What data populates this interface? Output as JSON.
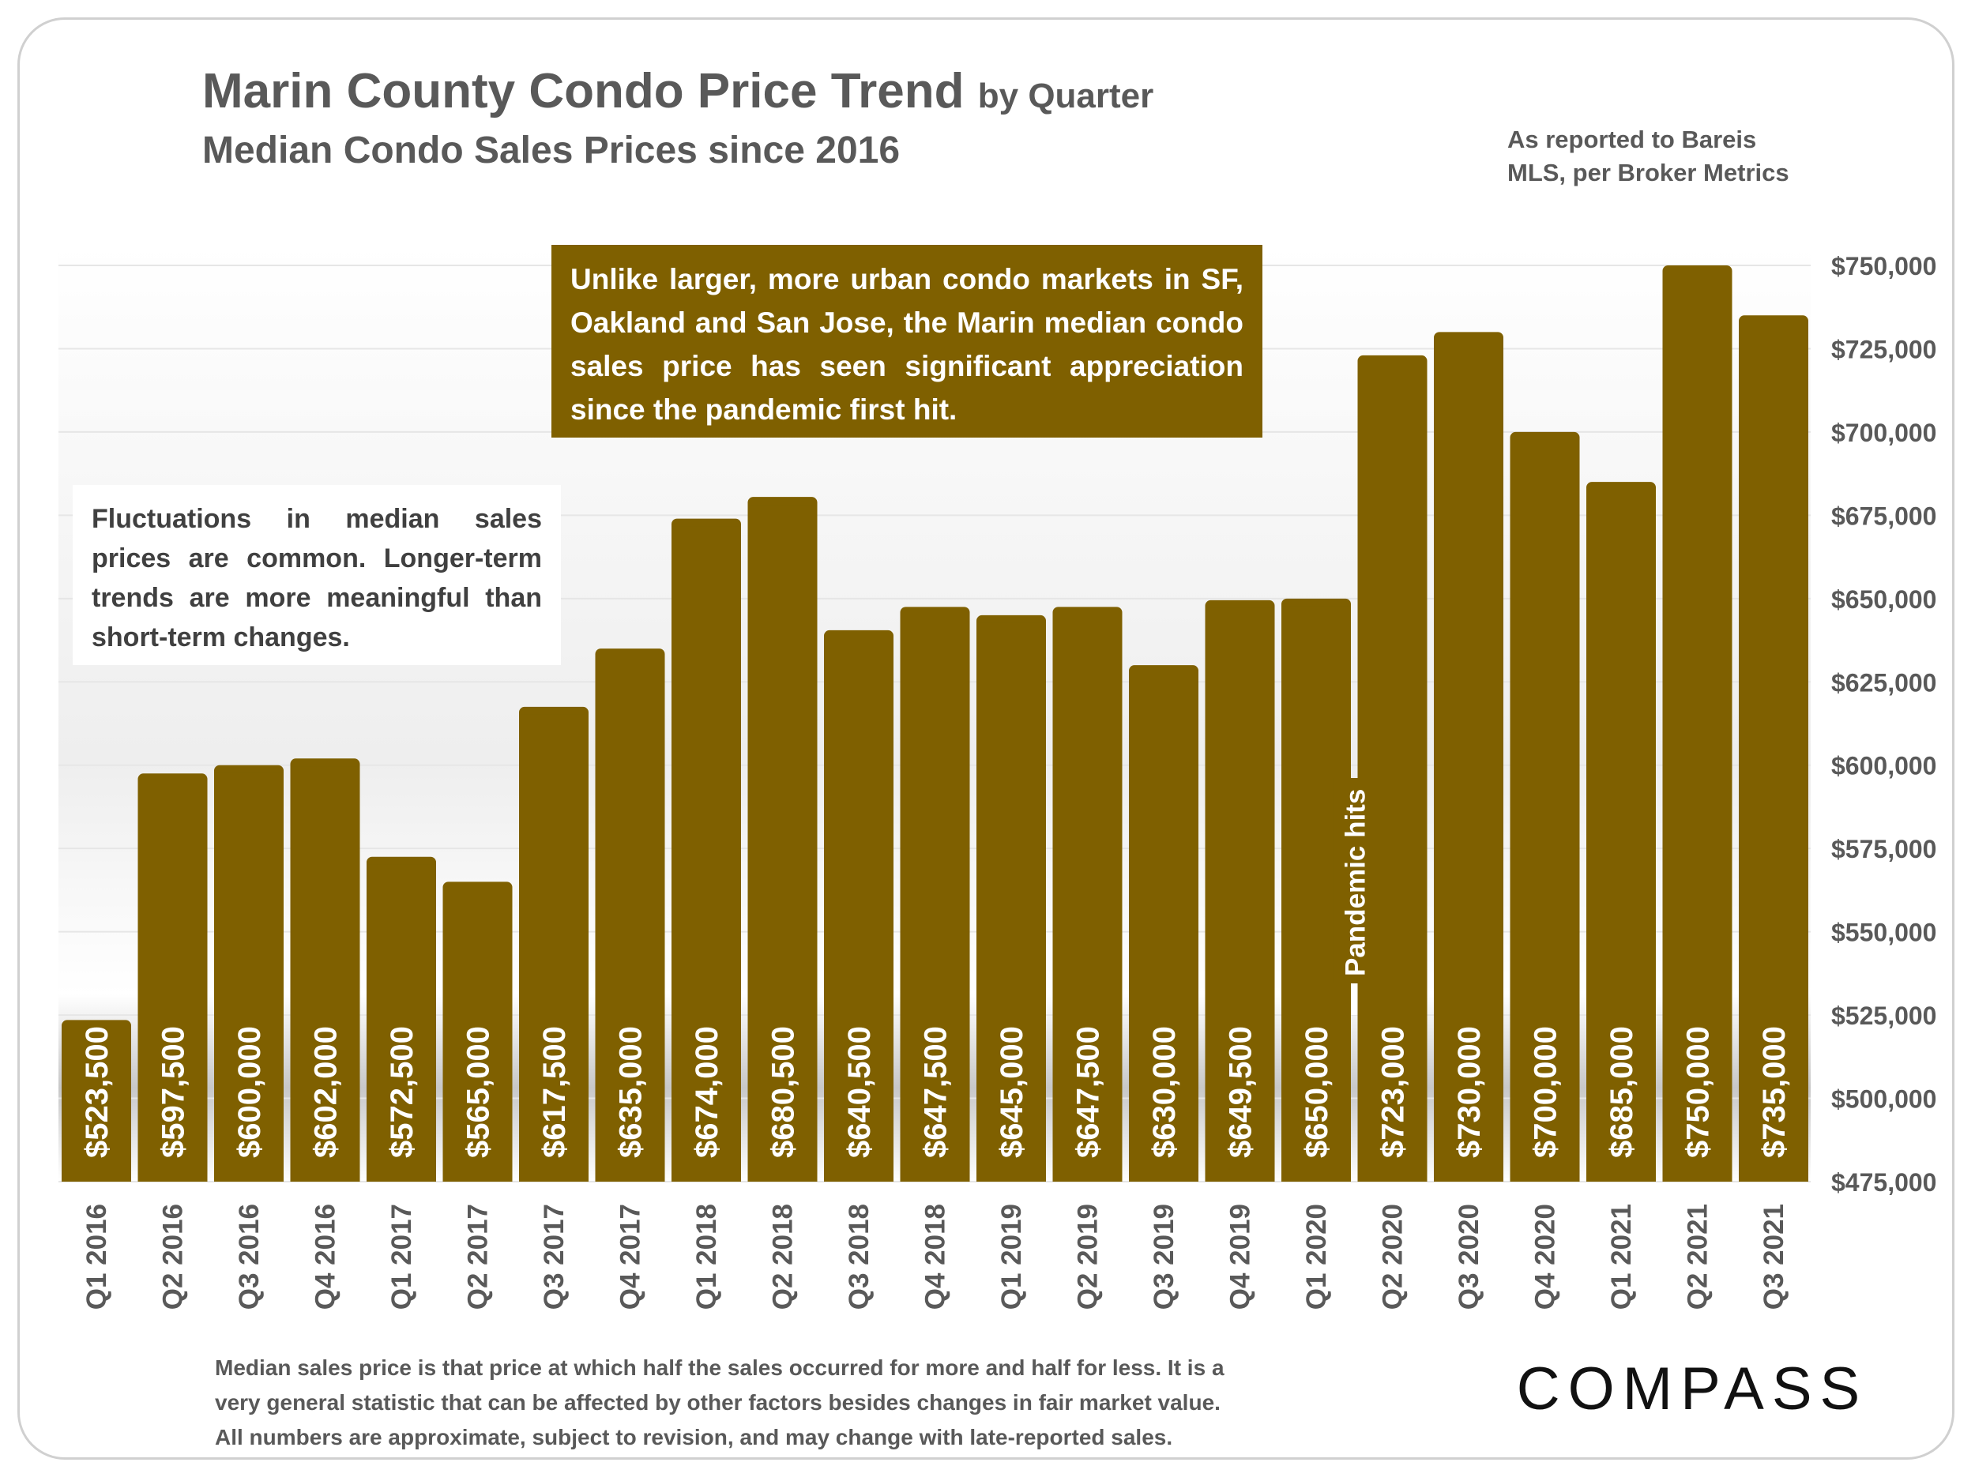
{
  "header": {
    "title": "Marin County Condo Price Trend",
    "title_suffix": "by Quarter",
    "subtitle": "Median Condo Sales Prices since 2016",
    "source_line1": "As reported to Bareis",
    "source_line2": "MLS, per Broker Metrics"
  },
  "callouts": {
    "pandemic_appreciation": "Unlike larger, more urban condo markets in SF, Oakland and San Jose, the Marin median condo sales price has seen significant appreciation since the pandemic first hit.",
    "fluctuations": "Fluctuations in median sales prices are common. Longer-term trends are more meaningful than short-term changes.",
    "pandemic_marker": "Pandemic hits"
  },
  "footnote": {
    "line1": "Median sales price is that price at which half the sales occurred for more and half for less. It is a",
    "line2": "very general statistic that can be affected by other factors besides changes in fair market value.",
    "line3": "All numbers are approximate, subject to revision, and may change with late-reported sales."
  },
  "brand": {
    "logo_text": "COMPASS"
  },
  "colors": {
    "bar": "#7f6000",
    "axis_text": "#595959",
    "grid": "#e6e6e6"
  },
  "chart_data": {
    "type": "bar",
    "title": "Marin County Condo Price Trend by Quarter",
    "subtitle": "Median Condo Sales Prices since 2016",
    "xlabel": "",
    "ylabel": "",
    "y_axis_position": "right",
    "grid": true,
    "ylim": [
      475000,
      750000
    ],
    "y_ticks": [
      475000,
      500000,
      525000,
      550000,
      575000,
      600000,
      625000,
      650000,
      675000,
      700000,
      725000,
      750000
    ],
    "y_tick_labels": [
      "$475,000",
      "$500,000",
      "$525,000",
      "$550,000",
      "$575,000",
      "$600,000",
      "$625,000",
      "$650,000",
      "$675,000",
      "$700,000",
      "$725,000",
      "$750,000"
    ],
    "categories": [
      "Q1 2016",
      "Q2 2016",
      "Q3 2016",
      "Q4 2016",
      "Q1 2017",
      "Q2 2017",
      "Q3 2017",
      "Q4 2017",
      "Q1 2018",
      "Q2 2018",
      "Q3 2018",
      "Q4 2018",
      "Q1 2019",
      "Q2 2019",
      "Q3 2019",
      "Q4 2019",
      "Q1 2020",
      "Q2 2020",
      "Q3 2020",
      "Q4 2020",
      "Q1 2021",
      "Q2 2021",
      "Q3 2021"
    ],
    "values": [
      523500,
      597500,
      600000,
      602000,
      572500,
      565000,
      617500,
      635000,
      674000,
      680500,
      640500,
      647500,
      645000,
      647500,
      630000,
      649500,
      650000,
      723000,
      730000,
      700000,
      685000,
      750000,
      735000
    ],
    "value_labels": [
      "$523,500",
      "$597,500",
      "$600,000",
      "$602,000",
      "$572,500",
      "$565,000",
      "$617,500",
      "$635,000",
      "$674,000",
      "$680,500",
      "$640,500",
      "$647,500",
      "$645,000",
      "$647,500",
      "$630,000",
      "$649,500",
      "$650,000",
      "$723,000",
      "$730,000",
      "$700,000",
      "$685,000",
      "$750,000",
      "$735,000"
    ],
    "annotation": {
      "text": "Pandemic hits",
      "between": [
        "Q1 2020",
        "Q2 2020"
      ]
    }
  }
}
